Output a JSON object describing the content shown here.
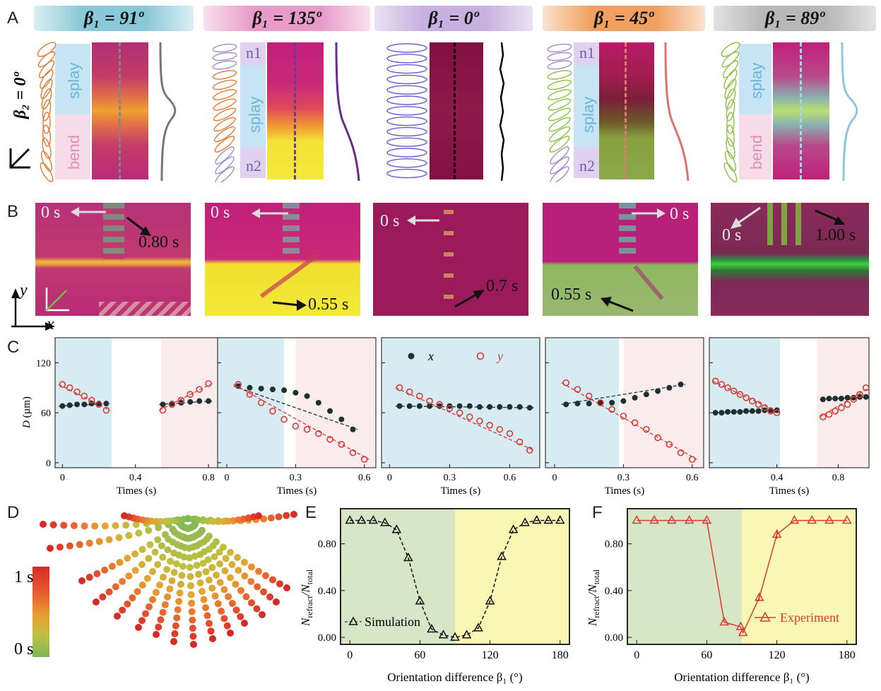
{
  "panel_labels": {
    "A": "A",
    "B": "B",
    "C": "C",
    "D": "D",
    "E": "E",
    "F": "F"
  },
  "row_label": "β₂ = 0º",
  "colors": {
    "teal": "#88c8d8",
    "pink": "#e89ac8",
    "purple": "#b7a0d8",
    "orange": "#f0a060",
    "gray": "#a0a0a0",
    "magenta": "#c2207a",
    "yellow": "#f4e83a",
    "green": "#6ec040",
    "red": "#d83a34",
    "dark": "#1e3030"
  },
  "panelA": [
    {
      "beta": "β₁ = 91º",
      "labels": [
        "splay",
        "bend"
      ],
      "curve": "#777777"
    },
    {
      "beta": "β₁ = 135º",
      "labels": [
        "n1",
        "splay",
        "n2"
      ],
      "curve": "#6a2b8a"
    },
    {
      "beta": "β₁ = 0º",
      "labels": [],
      "curve": "#000000"
    },
    {
      "beta": "β₁ =  45º",
      "labels": [
        "n1",
        "splay",
        "n2"
      ],
      "curve": "#e0706a"
    },
    {
      "beta": "β₁ =  89º",
      "labels": [
        "splay",
        "bend"
      ],
      "curve": "#8cc8dc"
    }
  ],
  "panelB": [
    {
      "t_start": "0 s",
      "t_end": "0.80 s"
    },
    {
      "t_start": "0 s",
      "t_end": "0.55 s"
    },
    {
      "t_start": "0 s",
      "t_end": "0.7 s"
    },
    {
      "t_start": "0 s",
      "t_end": "0.55 s"
    },
    {
      "t_start": "0 s",
      "t_end": "1.00 s"
    }
  ],
  "axes_xy": {
    "x": "x",
    "y": "y"
  },
  "panelC": {
    "ylabel": "D (µm)",
    "xlabel": "Times (s)",
    "legend": {
      "x": "x",
      "y": "y"
    },
    "yticks": [
      0,
      60,
      120
    ],
    "plots": [
      {
        "xticks": [
          0,
          0.4,
          0.8
        ],
        "xmax": 0.85,
        "shade": [
          [
            0,
            0.27,
            "blue"
          ],
          [
            0.54,
            0.85,
            "pink"
          ]
        ],
        "x": [
          [
            0,
            68
          ],
          [
            0.04,
            69
          ],
          [
            0.08,
            70
          ],
          [
            0.12,
            70
          ],
          [
            0.16,
            71
          ],
          [
            0.2,
            71
          ],
          [
            0.24,
            71
          ],
          [
            0.55,
            70
          ],
          [
            0.6,
            71
          ],
          [
            0.65,
            72
          ],
          [
            0.7,
            73
          ],
          [
            0.75,
            74
          ],
          [
            0.8,
            74
          ]
        ],
        "y": [
          [
            0,
            94
          ],
          [
            0.04,
            90
          ],
          [
            0.08,
            85
          ],
          [
            0.12,
            80
          ],
          [
            0.16,
            75
          ],
          [
            0.2,
            70
          ],
          [
            0.24,
            63
          ],
          [
            0.55,
            63
          ],
          [
            0.6,
            70
          ],
          [
            0.65,
            75
          ],
          [
            0.7,
            82
          ],
          [
            0.75,
            88
          ],
          [
            0.8,
            95
          ]
        ]
      },
      {
        "xticks": [
          0,
          0.3,
          0.6
        ],
        "xmax": 0.65,
        "shade": [
          [
            0,
            0.25,
            "blue"
          ],
          [
            0.3,
            0.65,
            "pink"
          ]
        ],
        "x": [
          [
            0.05,
            92
          ],
          [
            0.1,
            90
          ],
          [
            0.15,
            89
          ],
          [
            0.2,
            88
          ],
          [
            0.25,
            87
          ],
          [
            0.3,
            84
          ],
          [
            0.35,
            80
          ],
          [
            0.4,
            72
          ],
          [
            0.45,
            62
          ],
          [
            0.5,
            52
          ],
          [
            0.55,
            40
          ]
        ],
        "y": [
          [
            0.05,
            94
          ],
          [
            0.1,
            82
          ],
          [
            0.15,
            72
          ],
          [
            0.2,
            62
          ],
          [
            0.25,
            52
          ],
          [
            0.3,
            44
          ],
          [
            0.35,
            40
          ],
          [
            0.4,
            35
          ],
          [
            0.45,
            28
          ],
          [
            0.5,
            22
          ],
          [
            0.55,
            12
          ],
          [
            0.6,
            4
          ]
        ]
      },
      {
        "xticks": [
          0,
          0.3,
          0.6
        ],
        "xmax": 0.75,
        "shade": [
          [
            0,
            0.75,
            "blue"
          ]
        ],
        "x": [
          [
            0.05,
            68
          ],
          [
            0.1,
            68
          ],
          [
            0.15,
            68
          ],
          [
            0.2,
            68
          ],
          [
            0.25,
            68
          ],
          [
            0.3,
            68
          ],
          [
            0.35,
            68
          ],
          [
            0.4,
            68
          ],
          [
            0.45,
            67
          ],
          [
            0.5,
            67
          ],
          [
            0.55,
            67
          ],
          [
            0.6,
            67
          ],
          [
            0.65,
            67
          ],
          [
            0.7,
            66
          ]
        ],
        "y": [
          [
            0.05,
            90
          ],
          [
            0.1,
            85
          ],
          [
            0.15,
            80
          ],
          [
            0.2,
            74
          ],
          [
            0.25,
            70
          ],
          [
            0.3,
            65
          ],
          [
            0.35,
            60
          ],
          [
            0.4,
            55
          ],
          [
            0.45,
            50
          ],
          [
            0.5,
            45
          ],
          [
            0.55,
            40
          ],
          [
            0.6,
            35
          ],
          [
            0.65,
            25
          ],
          [
            0.7,
            15
          ]
        ]
      },
      {
        "xticks": [
          0,
          0.3,
          0.6
        ],
        "xmax": 0.65,
        "shade": [
          [
            0,
            0.28,
            "blue"
          ],
          [
            0.3,
            0.65,
            "pink"
          ]
        ],
        "x": [
          [
            0.05,
            70
          ],
          [
            0.1,
            71
          ],
          [
            0.15,
            71
          ],
          [
            0.2,
            72
          ],
          [
            0.25,
            72
          ],
          [
            0.3,
            74
          ],
          [
            0.35,
            78
          ],
          [
            0.4,
            82
          ],
          [
            0.45,
            86
          ],
          [
            0.5,
            90
          ],
          [
            0.55,
            94
          ]
        ],
        "y": [
          [
            0.05,
            96
          ],
          [
            0.1,
            88
          ],
          [
            0.15,
            80
          ],
          [
            0.2,
            72
          ],
          [
            0.25,
            64
          ],
          [
            0.3,
            56
          ],
          [
            0.35,
            48
          ],
          [
            0.4,
            40
          ],
          [
            0.45,
            30
          ],
          [
            0.5,
            22
          ],
          [
            0.55,
            12
          ],
          [
            0.6,
            4
          ]
        ]
      },
      {
        "xticks": [
          0.4,
          0.8
        ],
        "xmax": 1.0,
        "shade": [
          [
            0,
            0.42,
            "blue"
          ],
          [
            0.66,
            1.0,
            "pink"
          ]
        ],
        "x": [
          [
            0,
            60
          ],
          [
            0.04,
            60
          ],
          [
            0.08,
            61
          ],
          [
            0.12,
            61
          ],
          [
            0.16,
            61
          ],
          [
            0.2,
            62
          ],
          [
            0.24,
            62
          ],
          [
            0.28,
            62
          ],
          [
            0.32,
            63
          ],
          [
            0.36,
            63
          ],
          [
            0.4,
            63
          ],
          [
            0.7,
            76
          ],
          [
            0.74,
            77
          ],
          [
            0.78,
            77
          ],
          [
            0.82,
            77
          ],
          [
            0.86,
            78
          ],
          [
            0.9,
            78
          ],
          [
            0.94,
            79
          ],
          [
            0.98,
            79
          ]
        ],
        "y": [
          [
            0,
            98
          ],
          [
            0.04,
            94
          ],
          [
            0.08,
            90
          ],
          [
            0.12,
            86
          ],
          [
            0.16,
            82
          ],
          [
            0.2,
            78
          ],
          [
            0.24,
            74
          ],
          [
            0.28,
            70
          ],
          [
            0.32,
            66
          ],
          [
            0.36,
            62
          ],
          [
            0.4,
            60
          ],
          [
            0.7,
            55
          ],
          [
            0.74,
            58
          ],
          [
            0.78,
            62
          ],
          [
            0.82,
            66
          ],
          [
            0.86,
            70
          ],
          [
            0.9,
            76
          ],
          [
            0.94,
            82
          ],
          [
            0.98,
            90
          ]
        ]
      }
    ]
  },
  "panelD": {
    "colorbar_top": "1 s",
    "colorbar_bottom": "0 s"
  },
  "panelE": {
    "ylabel": "N_refract/N_total",
    "ylabel_main": "N",
    "ylabel_sub1": "refract",
    "ylabel_sep": "/N",
    "ylabel_sub2": "total",
    "xlabel": "Orientation difference β₁ (°)",
    "xticks": [
      0,
      60,
      120,
      180
    ],
    "yticks": [
      "0.00",
      "0.40",
      "0.80"
    ],
    "legend": "Simulation",
    "chart_data": {
      "type": "line",
      "series": [
        {
          "name": "Simulation",
          "x": [
            0,
            10,
            20,
            30,
            40,
            50,
            60,
            70,
            80,
            90,
            100,
            110,
            120,
            130,
            140,
            150,
            160,
            170,
            180
          ],
          "y": [
            1.0,
            1.0,
            1.0,
            0.98,
            0.92,
            0.68,
            0.31,
            0.07,
            0.02,
            0.0,
            0.02,
            0.08,
            0.31,
            0.69,
            0.92,
            0.98,
            1.0,
            1.0,
            1.0
          ]
        }
      ],
      "xlim": [
        -8,
        188
      ],
      "ylim": [
        -0.06,
        1.1
      ]
    }
  },
  "panelF": {
    "xlabel": "Orientation difference β₁ (°)",
    "xticks": [
      0,
      60,
      120,
      180
    ],
    "yticks": [
      "0.00",
      "0.40",
      "0.80"
    ],
    "legend": "Experiment",
    "chart_data": {
      "type": "line",
      "series": [
        {
          "name": "Experiment",
          "x": [
            0,
            15,
            30,
            45,
            60,
            75,
            89,
            91,
            105,
            120,
            135,
            150,
            165,
            180
          ],
          "y": [
            1.0,
            1.0,
            1.0,
            1.0,
            1.0,
            0.13,
            0.09,
            0.04,
            0.34,
            0.88,
            1.0,
            1.0,
            1.0,
            1.0
          ]
        }
      ],
      "xlim": [
        -8,
        188
      ],
      "ylim": [
        -0.06,
        1.1
      ]
    }
  }
}
